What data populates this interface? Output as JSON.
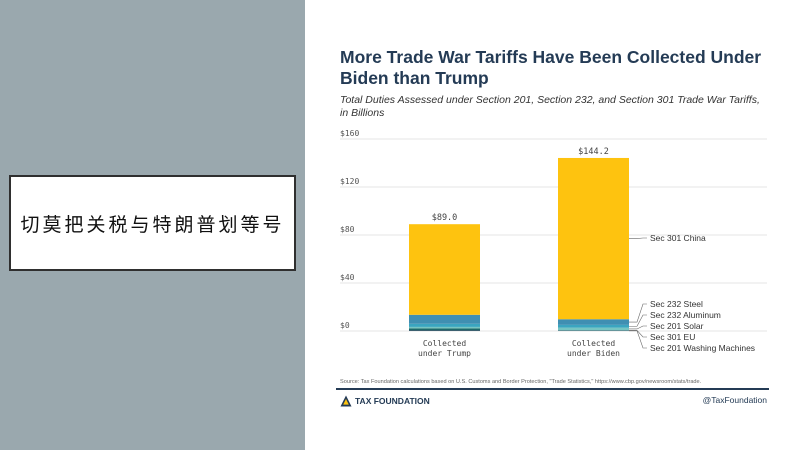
{
  "caption": "切莫把关税与特朗普划等号",
  "chart_data": {
    "type": "bar",
    "stacked": true,
    "title": "More Trade War Tariffs Have Been Collected Under Biden than Trump",
    "subtitle": "Total Duties Assessed under Section 201, Section 232, and Section 301 Trade War Tariffs, in Billions",
    "categories": [
      "Collected under Trump",
      "Collected under Biden"
    ],
    "category_lines": [
      [
        "Collected",
        "under Trump"
      ],
      [
        "Collected",
        "under Biden"
      ]
    ],
    "totals": [
      89.0,
      144.2
    ],
    "total_labels": [
      "$89.0",
      "$144.2"
    ],
    "ylim": [
      0,
      160
    ],
    "yticks": [
      0,
      40,
      80,
      120,
      160
    ],
    "ytick_labels": [
      "$0",
      "$40",
      "$80",
      "$120",
      "$160"
    ],
    "grid": true,
    "legend_placement": "right of bars (direct labels)",
    "series": [
      {
        "name": "Sec 201 Washing Machines",
        "values": [
          0.6,
          0.3
        ],
        "color": "#243b55"
      },
      {
        "name": "Sec 301 EU",
        "values": [
          1.6,
          0.3
        ],
        "color": "#1d6b6b"
      },
      {
        "name": "Sec 201 Solar",
        "values": [
          1.2,
          2.2
        ],
        "color": "#75c5c2"
      },
      {
        "name": "Sec 232 Aluminum",
        "values": [
          2.6,
          2.3
        ],
        "color": "#3aa5c0"
      },
      {
        "name": "Sec 232 Steel",
        "values": [
          7.5,
          4.7
        ],
        "color": "#3f8fb2"
      },
      {
        "name": "Sec 301 China",
        "values": [
          75.5,
          134.4
        ],
        "color": "#fec30f"
      }
    ],
    "gridline_color": "#dddddd"
  },
  "source": "Source: Tax Foundation calculations based on U.S. Customs and Border Protection, \"Trade Statistics,\" https://www.cbp.gov/newsroom/stats/trade.",
  "brand": "TAX FOUNDATION",
  "handle": "@TaxFoundation",
  "icon": "tax-foundation-logo-icon"
}
